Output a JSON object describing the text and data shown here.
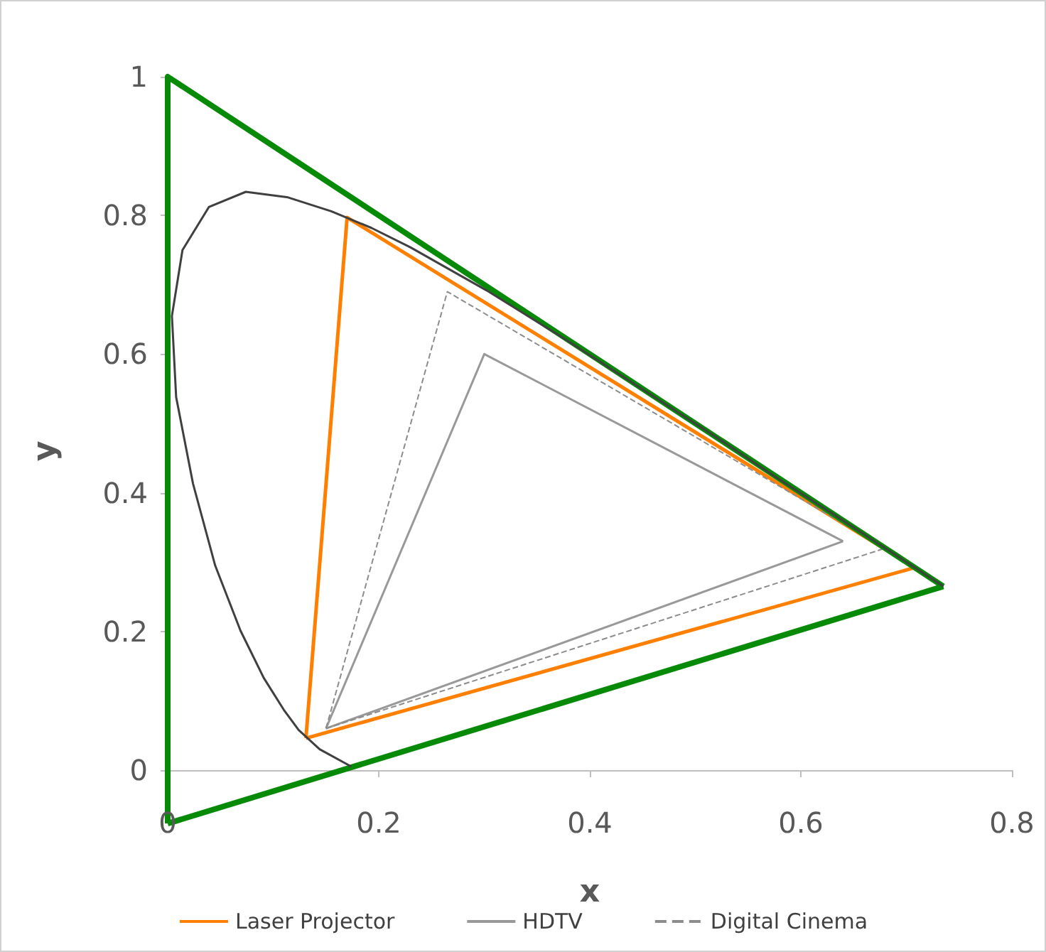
{
  "chart_data": {
    "type": "line",
    "xlabel": "x",
    "ylabel": "y",
    "xlim": [
      0,
      0.8
    ],
    "xticks": [
      0,
      0.2,
      0.4,
      0.6,
      0.8
    ],
    "ylim": [
      -0.08,
      1
    ],
    "yticks": [
      0,
      0.2,
      0.4,
      0.6,
      0.8,
      1
    ],
    "grid": false,
    "legend": "bottom",
    "marker": "none",
    "series": [
      {
        "color": "#404040",
        "line_style": "solid",
        "x": [
          0.174,
          0.144,
          0.124,
          0.11,
          0.091,
          0.069,
          0.045,
          0.024,
          0.008,
          0.004,
          0.014,
          0.039,
          0.074,
          0.114,
          0.155,
          0.193,
          0.23,
          0.302,
          0.373,
          0.444,
          0.513,
          0.575,
          0.627,
          0.692,
          0.735
        ],
        "values": [
          0.005,
          0.03,
          0.058,
          0.087,
          0.133,
          0.201,
          0.295,
          0.413,
          0.538,
          0.655,
          0.75,
          0.812,
          0.834,
          0.826,
          0.806,
          0.782,
          0.754,
          0.692,
          0.625,
          0.555,
          0.487,
          0.424,
          0.373,
          0.308,
          0.265
        ]
      },
      {
        "name": "Laser Projector",
        "color": "#ff7f00",
        "line_style": "solid",
        "x": [
          0.708,
          0.17,
          0.131
        ],
        "values": [
          0.292,
          0.797,
          0.046
        ]
      },
      {
        "color": "#ff7f00",
        "line_style": "solid",
        "x": [
          0.131,
          0.708
        ],
        "values": [
          0.046,
          0.292
        ]
      },
      {
        "name": "HDTV",
        "color": "#999999",
        "line_style": "solid",
        "x": [
          0.64,
          0.3,
          0.15
        ],
        "values": [
          0.33,
          0.6,
          0.06
        ]
      },
      {
        "color": "#999999",
        "line_style": "solid",
        "x": [
          0.15,
          0.64
        ],
        "values": [
          0.06,
          0.33
        ]
      },
      {
        "name": "Digital Cinema",
        "color": "#8c8c8c",
        "line_style": "dashed",
        "x": [
          0.68,
          0.265,
          0.15
        ],
        "values": [
          0.32,
          0.69,
          0.06
        ]
      },
      {
        "color": "#8c8c8c",
        "line_style": "dashed",
        "x": [
          0.15,
          0.68
        ],
        "values": [
          0.06,
          0.32
        ]
      },
      {
        "color": "#078a07",
        "line_style": "solid",
        "x": [
          0.735,
          0.0,
          0.0
        ],
        "values": [
          0.265,
          1.0,
          -0.077
        ]
      },
      {
        "color": "#078a07",
        "line_style": "solid",
        "x": [
          0.0,
          0.735
        ],
        "values": [
          -0.077,
          0.265
        ]
      }
    ]
  }
}
